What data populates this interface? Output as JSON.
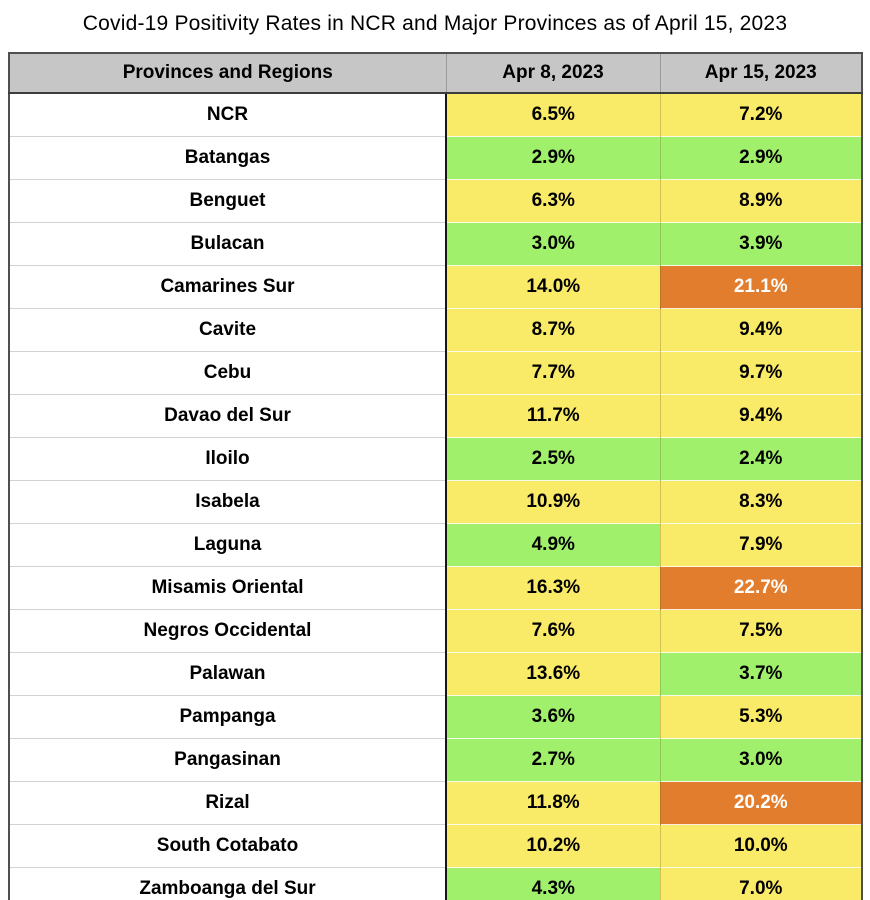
{
  "title": "Covid-19 Positivity Rates in NCR and Major Provinces as of April 15, 2023",
  "colors": {
    "header_bg": "#C6C6C6",
    "yellow": "#F9EA67",
    "green": "#A0F06B",
    "orange": "#E17D2D",
    "orange_text": "#FFFFFF",
    "text": "#000000"
  },
  "chart_data": {
    "type": "table",
    "title": "Covid-19 Positivity Rates in NCR and Major Provinces as of April 15, 2023",
    "columns": [
      "Provinces and Regions",
      "Apr 8, 2023",
      "Apr 15, 2023"
    ],
    "value_unit": "%",
    "color_coding": {
      "yellow": "#F9EA67",
      "green": "#A0F06B",
      "orange": "#E17D2D"
    },
    "rows": [
      {
        "province": "NCR",
        "values": [
          6.5,
          7.2
        ],
        "labels": [
          "6.5%",
          "7.2%"
        ],
        "levels": [
          "yellow",
          "yellow"
        ]
      },
      {
        "province": "Batangas",
        "values": [
          2.9,
          2.9
        ],
        "labels": [
          "2.9%",
          "2.9%"
        ],
        "levels": [
          "green",
          "green"
        ]
      },
      {
        "province": "Benguet",
        "values": [
          6.3,
          8.9
        ],
        "labels": [
          "6.3%",
          "8.9%"
        ],
        "levels": [
          "yellow",
          "yellow"
        ]
      },
      {
        "province": "Bulacan",
        "values": [
          3.0,
          3.9
        ],
        "labels": [
          "3.0%",
          "3.9%"
        ],
        "levels": [
          "green",
          "green"
        ]
      },
      {
        "province": "Camarines Sur",
        "values": [
          14.0,
          21.1
        ],
        "labels": [
          "14.0%",
          "21.1%"
        ],
        "levels": [
          "yellow",
          "orange"
        ]
      },
      {
        "province": "Cavite",
        "values": [
          8.7,
          9.4
        ],
        "labels": [
          "8.7%",
          "9.4%"
        ],
        "levels": [
          "yellow",
          "yellow"
        ]
      },
      {
        "province": "Cebu",
        "values": [
          7.7,
          9.7
        ],
        "labels": [
          "7.7%",
          "9.7%"
        ],
        "levels": [
          "yellow",
          "yellow"
        ]
      },
      {
        "province": "Davao del Sur",
        "values": [
          11.7,
          9.4
        ],
        "labels": [
          "11.7%",
          "9.4%"
        ],
        "levels": [
          "yellow",
          "yellow"
        ]
      },
      {
        "province": "Iloilo",
        "values": [
          2.5,
          2.4
        ],
        "labels": [
          "2.5%",
          "2.4%"
        ],
        "levels": [
          "green",
          "green"
        ]
      },
      {
        "province": "Isabela",
        "values": [
          10.9,
          8.3
        ],
        "labels": [
          "10.9%",
          "8.3%"
        ],
        "levels": [
          "yellow",
          "yellow"
        ]
      },
      {
        "province": "Laguna",
        "values": [
          4.9,
          7.9
        ],
        "labels": [
          "4.9%",
          "7.9%"
        ],
        "levels": [
          "green",
          "yellow"
        ]
      },
      {
        "province": "Misamis Oriental",
        "values": [
          16.3,
          22.7
        ],
        "labels": [
          "16.3%",
          "22.7%"
        ],
        "levels": [
          "yellow",
          "orange"
        ]
      },
      {
        "province": "Negros Occidental",
        "values": [
          7.6,
          7.5
        ],
        "labels": [
          "7.6%",
          "7.5%"
        ],
        "levels": [
          "yellow",
          "yellow"
        ]
      },
      {
        "province": "Palawan",
        "values": [
          13.6,
          3.7
        ],
        "labels": [
          "13.6%",
          "3.7%"
        ],
        "levels": [
          "yellow",
          "green"
        ]
      },
      {
        "province": "Pampanga",
        "values": [
          3.6,
          5.3
        ],
        "labels": [
          "3.6%",
          "5.3%"
        ],
        "levels": [
          "green",
          "yellow"
        ]
      },
      {
        "province": "Pangasinan",
        "values": [
          2.7,
          3.0
        ],
        "labels": [
          "2.7%",
          "3.0%"
        ],
        "levels": [
          "green",
          "green"
        ]
      },
      {
        "province": "Rizal",
        "values": [
          11.8,
          20.2
        ],
        "labels": [
          "11.8%",
          "20.2%"
        ],
        "levels": [
          "yellow",
          "orange"
        ]
      },
      {
        "province": "South Cotabato",
        "values": [
          10.2,
          10.0
        ],
        "labels": [
          "10.2%",
          "10.0%"
        ],
        "levels": [
          "yellow",
          "yellow"
        ]
      },
      {
        "province": "Zamboanga del Sur",
        "values": [
          4.3,
          7.0
        ],
        "labels": [
          "4.3%",
          "7.0%"
        ],
        "levels": [
          "green",
          "yellow"
        ]
      }
    ]
  }
}
